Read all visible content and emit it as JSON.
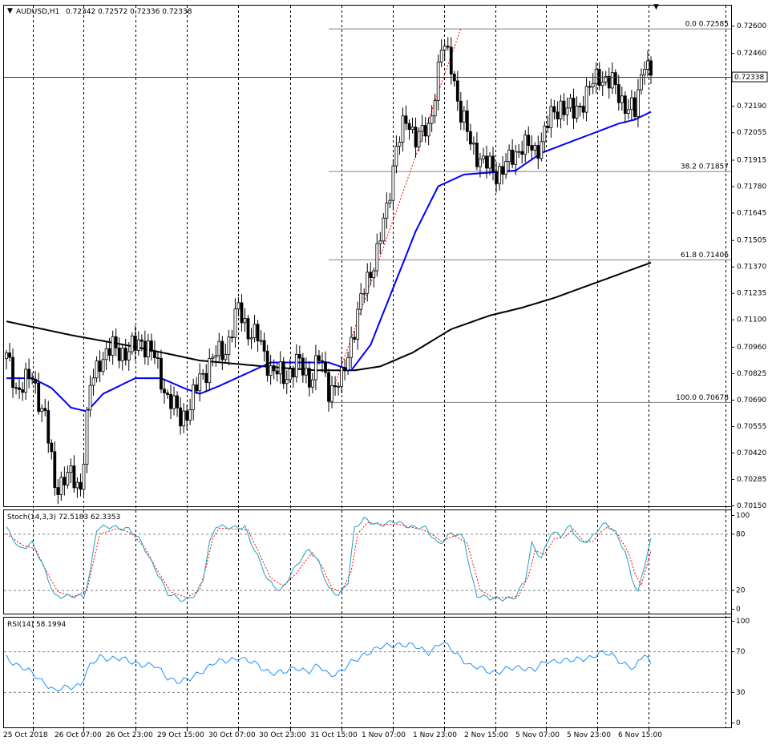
{
  "header": {
    "symbol": "AUDUSD,H1",
    "ohlc": "0.72342 0.72572 0.72336 0.72338",
    "marker": "▼"
  },
  "colors": {
    "candle_line": "#000000",
    "candle_bull_fill": "#ffffff",
    "candle_bear_fill": "#000000",
    "ma_fast": "#0000ff",
    "ma_slow": "#000000",
    "fib_line": "#808080",
    "trend_line": "#ff0000",
    "current_price_line": "#006400",
    "stoch_main": "#20a0c0",
    "stoch_signal": "#ff0000",
    "rsi": "#1e90ff",
    "grid": "#000000",
    "marker": "#00a000"
  },
  "chart_data": [
    {
      "type": "candlestick",
      "pane": "price",
      "ylim": [
        0.7015,
        0.7265
      ],
      "y_ticks": [
        "0.72600",
        "0.72460",
        "0.72325",
        "0.72190",
        "0.72055",
        "0.71915",
        "0.71780",
        "0.71645",
        "0.71505",
        "0.71370",
        "0.71235",
        "0.71100",
        "0.70960",
        "0.70825",
        "0.70690",
        "0.70555",
        "0.70420",
        "0.70285",
        "0.70150"
      ],
      "current_price": "0.72338",
      "x_labels": [
        "25 Oct 2018",
        "26 Oct 07:00",
        "26 Oct 23:00",
        "29 Oct 15:00",
        "30 Oct 07:00",
        "30 Oct 23:00",
        "31 Oct 15:00",
        "1 Nov 07:00",
        "1 Nov 23:00",
        "2 Nov 15:00",
        "5 Nov 07:00",
        "5 Nov 23:00",
        "6 Nov 15:00"
      ],
      "fibonacci": [
        {
          "label": "0.0",
          "price": "0.72585"
        },
        {
          "label": "38.2",
          "price": "0.71857"
        },
        {
          "label": "61.8",
          "price": "0.71406"
        },
        {
          "label": "100.0",
          "price": "0.70678"
        }
      ],
      "fib_start_bar": 100,
      "ma_fast_anchors": [
        [
          0,
          0.708
        ],
        [
          8,
          0.708
        ],
        [
          14,
          0.7075
        ],
        [
          20,
          0.7065
        ],
        [
          25,
          0.7063
        ],
        [
          30,
          0.7072
        ],
        [
          40,
          0.708
        ],
        [
          48,
          0.708
        ],
        [
          55,
          0.7075
        ],
        [
          60,
          0.7072
        ],
        [
          66,
          0.7076
        ],
        [
          74,
          0.7082
        ],
        [
          82,
          0.7088
        ],
        [
          90,
          0.7088
        ],
        [
          100,
          0.7088
        ],
        [
          107,
          0.7084
        ],
        [
          113,
          0.7097
        ],
        [
          120,
          0.7126
        ],
        [
          127,
          0.7155
        ],
        [
          134,
          0.7178
        ],
        [
          142,
          0.7184
        ],
        [
          150,
          0.7185
        ],
        [
          158,
          0.7186
        ],
        [
          166,
          0.7195
        ],
        [
          174,
          0.72
        ],
        [
          182,
          0.7205
        ],
        [
          190,
          0.721
        ],
        [
          195,
          0.7212
        ],
        [
          200,
          0.7216
        ]
      ],
      "ma_slow_anchors": [
        [
          0,
          0.7109
        ],
        [
          20,
          0.7102
        ],
        [
          40,
          0.7096
        ],
        [
          60,
          0.7089
        ],
        [
          80,
          0.7086
        ],
        [
          96,
          0.7084
        ],
        [
          108,
          0.7084
        ],
        [
          116,
          0.7086
        ],
        [
          126,
          0.7093
        ],
        [
          138,
          0.7105
        ],
        [
          150,
          0.7112
        ],
        [
          160,
          0.7116
        ],
        [
          170,
          0.7121
        ],
        [
          180,
          0.7127
        ],
        [
          190,
          0.7133
        ],
        [
          200,
          0.7139
        ]
      ],
      "close_anchors": [
        [
          0,
          0.709
        ],
        [
          3,
          0.7075
        ],
        [
          8,
          0.708
        ],
        [
          12,
          0.706
        ],
        [
          15,
          0.7025
        ],
        [
          19,
          0.703
        ],
        [
          23,
          0.7025
        ],
        [
          26,
          0.7075
        ],
        [
          29,
          0.709
        ],
        [
          33,
          0.7095
        ],
        [
          38,
          0.7093
        ],
        [
          42,
          0.71
        ],
        [
          46,
          0.709
        ],
        [
          50,
          0.707
        ],
        [
          54,
          0.706
        ],
        [
          57,
          0.7065
        ],
        [
          60,
          0.708
        ],
        [
          64,
          0.709
        ],
        [
          68,
          0.7095
        ],
        [
          72,
          0.7115
        ],
        [
          75,
          0.7105
        ],
        [
          78,
          0.71
        ],
        [
          82,
          0.7085
        ],
        [
          86,
          0.708
        ],
        [
          90,
          0.7088
        ],
        [
          94,
          0.708
        ],
        [
          97,
          0.709
        ],
        [
          100,
          0.7075
        ],
        [
          104,
          0.7078
        ],
        [
          107,
          0.71
        ],
        [
          111,
          0.7125
        ],
        [
          115,
          0.7145
        ],
        [
          118,
          0.7165
        ],
        [
          121,
          0.72
        ],
        [
          124,
          0.721
        ],
        [
          127,
          0.7205
        ],
        [
          131,
          0.7205
        ],
        [
          135,
          0.725
        ],
        [
          138,
          0.724
        ],
        [
          141,
          0.7215
        ],
        [
          144,
          0.72
        ],
        [
          148,
          0.719
        ],
        [
          152,
          0.7185
        ],
        [
          156,
          0.719
        ],
        [
          160,
          0.72
        ],
        [
          164,
          0.7195
        ],
        [
          168,
          0.721
        ],
        [
          172,
          0.722
        ],
        [
          176,
          0.7215
        ],
        [
          180,
          0.7225
        ],
        [
          184,
          0.7235
        ],
        [
          188,
          0.723
        ],
        [
          192,
          0.722
        ],
        [
          195,
          0.7215
        ],
        [
          198,
          0.7245
        ],
        [
          200,
          0.7234
        ]
      ],
      "trend_line_from": [
        100,
        0.70678
      ],
      "trend_line_to": [
        141,
        0.72585
      ]
    },
    {
      "type": "line",
      "pane": "stochastic",
      "label": "Stoch(14,3,3) 72.5183 62.3353",
      "ylim": [
        0,
        100
      ],
      "y_ticks": [
        "100",
        "80",
        "20",
        "0"
      ],
      "levels": [
        80,
        20
      ],
      "main_anchors": [
        [
          0,
          85
        ],
        [
          4,
          65
        ],
        [
          8,
          70
        ],
        [
          12,
          40
        ],
        [
          15,
          15
        ],
        [
          20,
          12
        ],
        [
          24,
          14
        ],
        [
          26,
          40
        ],
        [
          28,
          85
        ],
        [
          34,
          88
        ],
        [
          38,
          85
        ],
        [
          42,
          70
        ],
        [
          46,
          45
        ],
        [
          50,
          15
        ],
        [
          55,
          10
        ],
        [
          59,
          15
        ],
        [
          61,
          30
        ],
        [
          63,
          70
        ],
        [
          65,
          90
        ],
        [
          70,
          85
        ],
        [
          74,
          88
        ],
        [
          78,
          55
        ],
        [
          81,
          30
        ],
        [
          85,
          20
        ],
        [
          89,
          40
        ],
        [
          92,
          55
        ],
        [
          94,
          65
        ],
        [
          97,
          50
        ],
        [
          100,
          20
        ],
        [
          103,
          15
        ],
        [
          106,
          30
        ],
        [
          108,
          85
        ],
        [
          111,
          95
        ],
        [
          116,
          90
        ],
        [
          121,
          92
        ],
        [
          126,
          88
        ],
        [
          130,
          85
        ],
        [
          134,
          70
        ],
        [
          138,
          80
        ],
        [
          142,
          75
        ],
        [
          144,
          40
        ],
        [
          146,
          15
        ],
        [
          150,
          10
        ],
        [
          155,
          12
        ],
        [
          158,
          12
        ],
        [
          161,
          30
        ],
        [
          163,
          70
        ],
        [
          166,
          55
        ],
        [
          169,
          80
        ],
        [
          172,
          78
        ],
        [
          175,
          90
        ],
        [
          178,
          70
        ],
        [
          181,
          72
        ],
        [
          184,
          88
        ],
        [
          186,
          92
        ],
        [
          189,
          80
        ],
        [
          192,
          60
        ],
        [
          194,
          35
        ],
        [
          196,
          18
        ],
        [
          199,
          60
        ],
        [
          200,
          72
        ]
      ],
      "signal_anchors": [
        [
          0,
          80
        ],
        [
          5,
          68
        ],
        [
          9,
          64
        ],
        [
          13,
          36
        ],
        [
          16,
          18
        ],
        [
          21,
          13
        ],
        [
          25,
          20
        ],
        [
          27,
          50
        ],
        [
          29,
          80
        ],
        [
          35,
          86
        ],
        [
          39,
          80
        ],
        [
          43,
          65
        ],
        [
          47,
          40
        ],
        [
          51,
          18
        ],
        [
          56,
          12
        ],
        [
          60,
          20
        ],
        [
          62,
          45
        ],
        [
          64,
          75
        ],
        [
          66,
          86
        ],
        [
          71,
          85
        ],
        [
          75,
          84
        ],
        [
          79,
          55
        ],
        [
          82,
          33
        ],
        [
          86,
          24
        ],
        [
          90,
          38
        ],
        [
          93,
          52
        ],
        [
          95,
          60
        ],
        [
          98,
          45
        ],
        [
          101,
          22
        ],
        [
          104,
          18
        ],
        [
          107,
          40
        ],
        [
          109,
          80
        ],
        [
          112,
          92
        ],
        [
          117,
          90
        ],
        [
          122,
          90
        ],
        [
          127,
          86
        ],
        [
          131,
          82
        ],
        [
          135,
          72
        ],
        [
          139,
          78
        ],
        [
          143,
          70
        ],
        [
          145,
          45
        ],
        [
          147,
          20
        ],
        [
          151,
          12
        ],
        [
          156,
          12
        ],
        [
          159,
          14
        ],
        [
          162,
          35
        ],
        [
          164,
          62
        ],
        [
          167,
          58
        ],
        [
          170,
          75
        ],
        [
          173,
          76
        ],
        [
          176,
          85
        ],
        [
          179,
          72
        ],
        [
          182,
          72
        ],
        [
          185,
          84
        ],
        [
          187,
          88
        ],
        [
          190,
          78
        ],
        [
          193,
          60
        ],
        [
          195,
          38
        ],
        [
          197,
          25
        ],
        [
          199,
          50
        ],
        [
          200,
          62
        ]
      ]
    },
    {
      "type": "line",
      "pane": "rsi",
      "label": "RSI(14) 58.1994",
      "ylim": [
        0,
        100
      ],
      "y_ticks": [
        "100",
        "70",
        "30",
        "0"
      ],
      "levels": [
        70,
        30
      ],
      "rsi_anchors": [
        [
          0,
          65
        ],
        [
          4,
          55
        ],
        [
          8,
          48
        ],
        [
          12,
          40
        ],
        [
          15,
          30
        ],
        [
          19,
          35
        ],
        [
          23,
          38
        ],
        [
          26,
          55
        ],
        [
          29,
          65
        ],
        [
          34,
          63
        ],
        [
          38,
          60
        ],
        [
          42,
          58
        ],
        [
          46,
          55
        ],
        [
          50,
          45
        ],
        [
          54,
          40
        ],
        [
          57,
          42
        ],
        [
          60,
          50
        ],
        [
          64,
          58
        ],
        [
          68,
          60
        ],
        [
          72,
          65
        ],
        [
          75,
          60
        ],
        [
          78,
          56
        ],
        [
          82,
          50
        ],
        [
          86,
          48
        ],
        [
          90,
          55
        ],
        [
          94,
          50
        ],
        [
          97,
          55
        ],
        [
          100,
          48
        ],
        [
          104,
          50
        ],
        [
          107,
          58
        ],
        [
          111,
          68
        ],
        [
          115,
          72
        ],
        [
          118,
          75
        ],
        [
          121,
          78
        ],
        [
          124,
          76
        ],
        [
          127,
          74
        ],
        [
          131,
          70
        ],
        [
          135,
          78
        ],
        [
          138,
          72
        ],
        [
          141,
          65
        ],
        [
          144,
          55
        ],
        [
          148,
          52
        ],
        [
          152,
          50
        ],
        [
          156,
          52
        ],
        [
          160,
          55
        ],
        [
          164,
          52
        ],
        [
          168,
          60
        ],
        [
          172,
          62
        ],
        [
          176,
          60
        ],
        [
          180,
          64
        ],
        [
          184,
          68
        ],
        [
          188,
          66
        ],
        [
          192,
          58
        ],
        [
          195,
          52
        ],
        [
          198,
          68
        ],
        [
          200,
          58
        ]
      ]
    }
  ]
}
